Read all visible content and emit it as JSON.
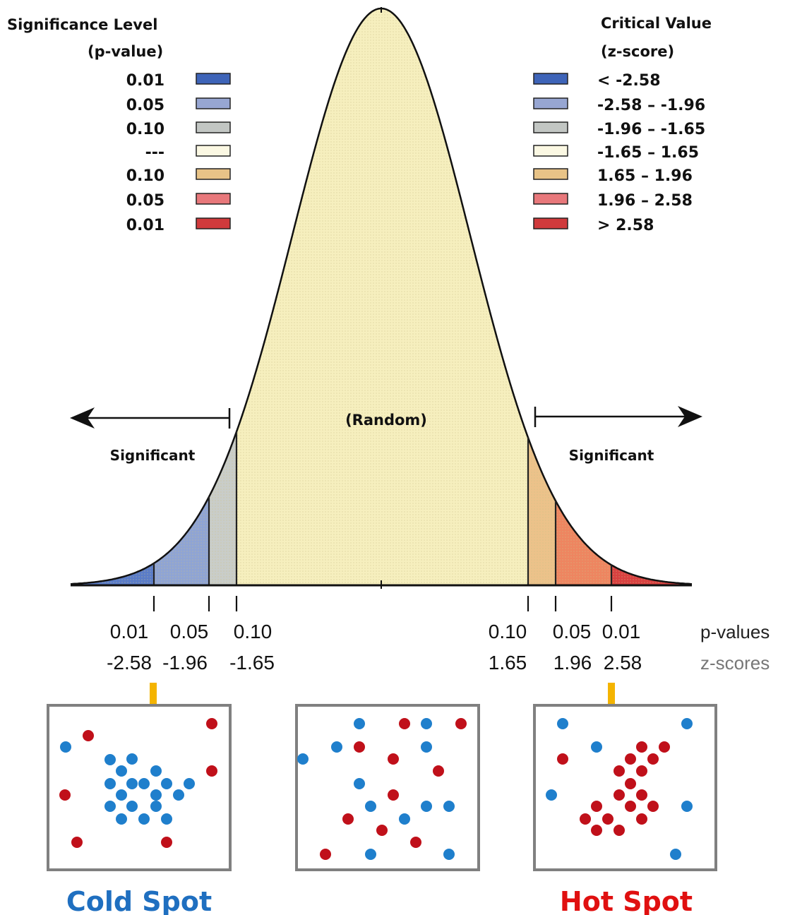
{
  "legend_left": {
    "title_line1": "Significance Level",
    "title_line2": "(p-value)",
    "items": [
      {
        "label": "0.01",
        "color": "#3E64B8"
      },
      {
        "label": "0.05",
        "color": "#97A6D2"
      },
      {
        "label": "0.10",
        "color": "#C2C6C3"
      },
      {
        "label": "---",
        "color": "#FBF8E3"
      },
      {
        "label": "0.10",
        "color": "#E8C387"
      },
      {
        "label": "0.05",
        "color": "#E8787B"
      },
      {
        "label": "0.01",
        "color": "#D03A3C"
      }
    ]
  },
  "legend_right": {
    "title_line1": "Critical Value",
    "title_line2": "(z-score)",
    "items": [
      {
        "label": "< -2.58",
        "color": "#3E64B8"
      },
      {
        "label": "-2.58 – -1.96",
        "color": "#97A6D2"
      },
      {
        "label": "-1.96 – -1.65",
        "color": "#C2C6C3"
      },
      {
        "label": "-1.65 – 1.65",
        "color": "#FBF8E3"
      },
      {
        "label": "1.65 – 1.96",
        "color": "#E8C387"
      },
      {
        "label": "1.96 – 2.58",
        "color": "#E8787B"
      },
      {
        "label": "> 2.58",
        "color": "#D03A3C"
      }
    ]
  },
  "curve": {
    "center_label": "(Random)",
    "left_label": "Significant",
    "right_label": "Significant",
    "region_colors": {
      "cold_99": "#5A7CC8",
      "cold_95": "#8FA4D4",
      "cold_90": "#C9CDC9",
      "random": "#F6EFBE",
      "hot_90": "#ECC28A",
      "hot_95": "#EE8560",
      "hot_99": "#D94040"
    }
  },
  "thresholds": [
    {
      "z": -2.58,
      "p_label": "0.01",
      "z_label": "-2.58"
    },
    {
      "z": -1.96,
      "p_label": "0.05",
      "z_label": "-1.96"
    },
    {
      "z": -1.65,
      "p_label": "0.10",
      "z_label": "-1.65"
    },
    {
      "z": 1.65,
      "p_label": "0.10",
      "z_label": "1.65"
    },
    {
      "z": 1.96,
      "p_label": "0.05",
      "z_label": "1.96"
    },
    {
      "z": 2.58,
      "p_label": "0.01",
      "z_label": "2.58"
    }
  ],
  "axis_labels": {
    "p_values": "p-values",
    "z_scores": "z-scores"
  },
  "spots": {
    "cold_label": "Cold Spot",
    "hot_label": "Hot Spot",
    "blue": "#1F7FCC",
    "red": "#C0101A",
    "arrow_color": "#F4B400",
    "cold_text_color": "#1F6FC0",
    "hot_text_color": "#E01010"
  }
}
